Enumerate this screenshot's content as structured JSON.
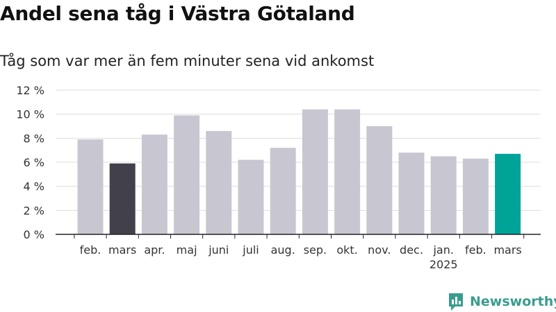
{
  "title": "Andel sena tåg i Västra Götaland",
  "subtitle": "Tåg som var mer än fem minuter sena vid ankomst",
  "brand": {
    "name": "Newsworthy",
    "icon": "newsworthy-logo-icon",
    "color": "#3a9c8f"
  },
  "colors": {
    "default_bar": "#c8c7d1",
    "previous_year_bar": "#41404b",
    "current_bar": "#00a398",
    "grid": "#dddddd",
    "axis": "#222222"
  },
  "chart_data": {
    "type": "bar",
    "title": "Andel sena tåg i Västra Götaland",
    "subtitle": "Tåg som var mer än fem minuter sena vid ankomst",
    "xlabel": "",
    "ylabel": "",
    "ylim": [
      0,
      12
    ],
    "grid": true,
    "categories": [
      "feb.",
      "mars",
      "apr.",
      "maj",
      "juni",
      "juli",
      "aug.",
      "sep.",
      "okt.",
      "nov.",
      "dec.",
      "jan.",
      "feb.",
      "mars"
    ],
    "year_labels": [
      "",
      "",
      "",
      "",
      "",
      "",
      "",
      "",
      "",
      "",
      "",
      "2025",
      "",
      ""
    ],
    "values": [
      7.9,
      5.9,
      8.3,
      9.9,
      8.6,
      6.2,
      7.2,
      10.4,
      10.4,
      9.0,
      6.8,
      6.5,
      6.3,
      6.7
    ],
    "bar_colors": [
      "#c8c7d1",
      "#41404b",
      "#c8c7d1",
      "#c8c7d1",
      "#c8c7d1",
      "#c8c7d1",
      "#c8c7d1",
      "#c8c7d1",
      "#c8c7d1",
      "#c8c7d1",
      "#c8c7d1",
      "#c8c7d1",
      "#c8c7d1",
      "#00a398"
    ],
    "yticks": [
      0,
      2,
      4,
      6,
      8,
      10,
      12
    ],
    "ytick_labels": [
      "0 %",
      "2 %",
      "4 %",
      "6 %",
      "8 %",
      "10 %",
      "12 %"
    ]
  }
}
